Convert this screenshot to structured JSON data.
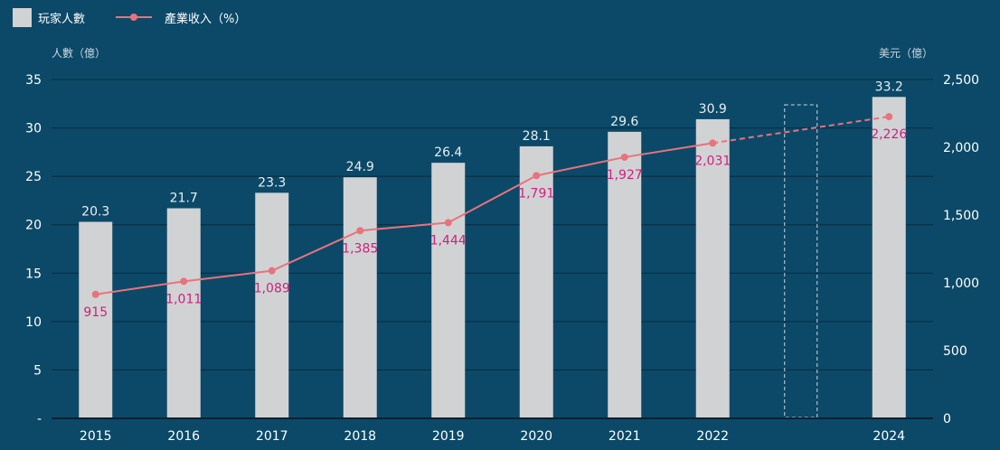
{
  "legend": {
    "bar_label": "玩家人數",
    "line_label": "產業收入（%）"
  },
  "axes": {
    "left_title": "人數（億）",
    "right_title": "美元（億）"
  },
  "colors": {
    "background": "#0c4968",
    "bar": "#d1d2d4",
    "line": "#e8737c",
    "line_label": "#d01f7e",
    "gridline": "#0a2a3c",
    "placeholder_border": "#c9d6df"
  },
  "chart_data": {
    "type": "bar",
    "categories": [
      "2015",
      "2016",
      "2017",
      "2018",
      "2019",
      "2020",
      "2021",
      "2022",
      "",
      "2024"
    ],
    "series": [
      {
        "name": "玩家人數",
        "type": "bar",
        "axis": "left",
        "values": [
          20.3,
          21.7,
          23.3,
          24.9,
          26.4,
          28.1,
          29.6,
          30.9,
          null,
          33.2
        ],
        "labels": [
          "20.3",
          "21.7",
          "23.3",
          "24.9",
          "26.4",
          "28.1",
          "29.6",
          "30.9",
          "",
          "33.2"
        ]
      },
      {
        "name": "產業收入（%）",
        "type": "line",
        "axis": "right",
        "values": [
          915,
          1011,
          1089,
          1385,
          1444,
          1791,
          1927,
          2031,
          null,
          2226
        ],
        "labels": [
          "915",
          "1,011",
          "1,089",
          "1,385",
          "1,444",
          "1,791",
          "1,927",
          "2,031",
          "",
          "2,226"
        ],
        "dashed_from_index": 7
      }
    ],
    "placeholder_index": 8,
    "left_axis": {
      "min": 0,
      "max": 35,
      "ticks": [
        "-",
        "5",
        "10",
        "15",
        "20",
        "25",
        "30",
        "35"
      ]
    },
    "right_axis": {
      "min": 0,
      "max": 2500,
      "ticks": [
        "0",
        "500",
        "1,000",
        "1,500",
        "2,000",
        "2,500"
      ]
    },
    "grid": true,
    "legend_position": "top-left"
  }
}
